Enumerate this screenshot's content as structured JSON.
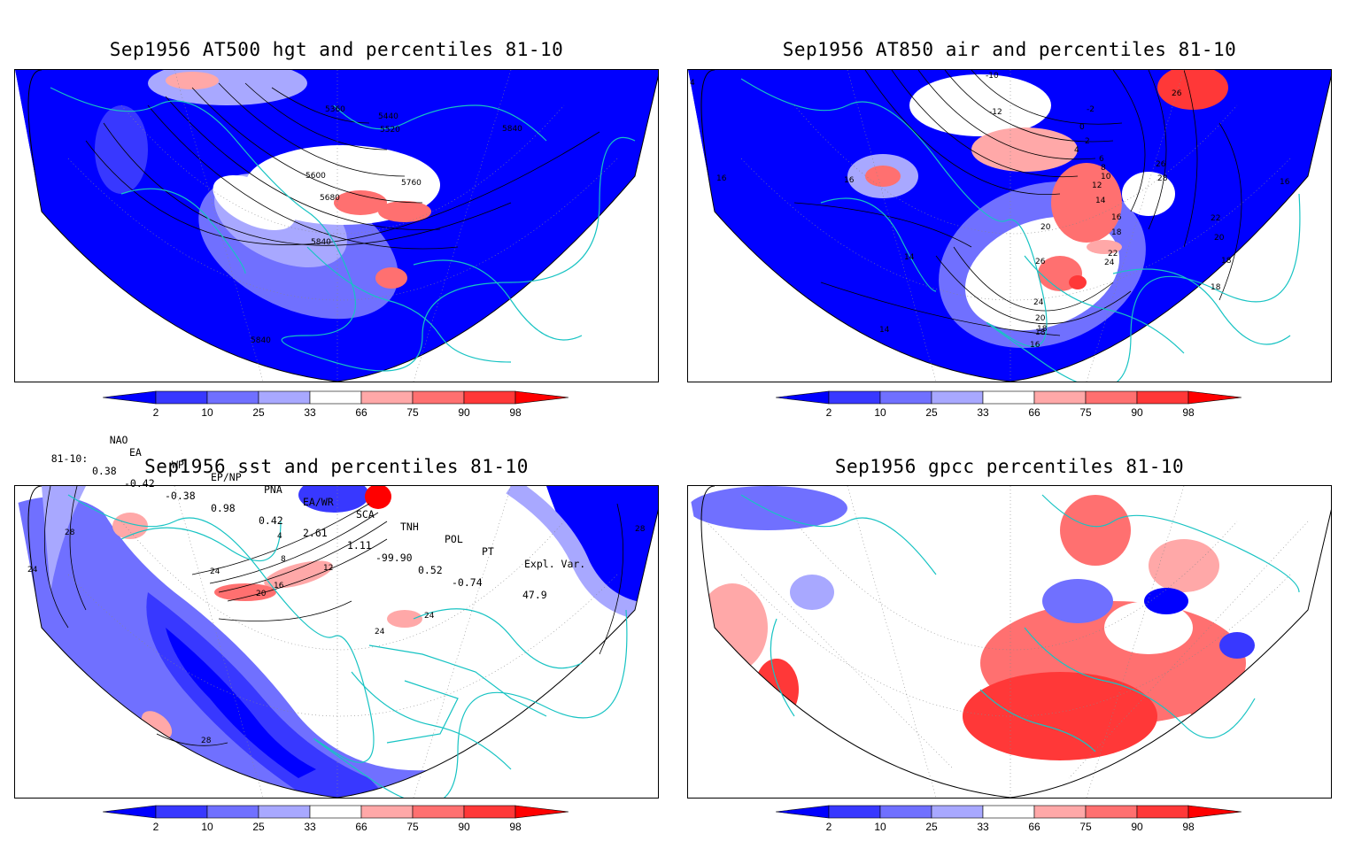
{
  "panels": [
    {
      "title": "Sep1956 AT500 hgt and percentiles 81-10",
      "contour_labels": [
        "5360",
        "5440",
        "5520",
        "5600",
        "5680",
        "5760",
        "5840",
        "5840",
        "5840",
        "5840"
      ]
    },
    {
      "title": "Sep1956 AT850 air and percentiles 81-10",
      "contour_labels": [
        "-10",
        "-12",
        "-2",
        "0",
        "2",
        "4",
        "6",
        "8",
        "10",
        "12",
        "14",
        "16",
        "16",
        "16",
        "16",
        "18",
        "18",
        "18",
        "18",
        "20",
        "20",
        "22",
        "22",
        "24",
        "24",
        "24",
        "26",
        "26",
        "26",
        "28",
        "20",
        "18",
        "4",
        "14",
        "14",
        "16"
      ]
    },
    {
      "title": "Sep1956 sst and percentiles 81-10",
      "contour_labels": [
        "28",
        "24",
        "4",
        "8",
        "12",
        "16",
        "20",
        "24",
        "24",
        "24",
        "28",
        "28"
      ]
    },
    {
      "title": "Sep1956 gpcc percentiles 81-10",
      "contour_labels": []
    }
  ],
  "colorbar": {
    "tick_labels": [
      "2",
      "10",
      "25",
      "33",
      "66",
      "75",
      "90",
      "98"
    ],
    "colors": [
      "#0000ff",
      "#3838ff",
      "#7070ff",
      "#a8a8ff",
      "#ffffff",
      "#ffa8a8",
      "#ff7070",
      "#ff3838",
      "#ff0000"
    ]
  },
  "indices": {
    "header": [
      "NAO",
      "EA",
      "WP",
      "EP/NP",
      "PNA",
      "EA/WR",
      "SCA",
      "TNH",
      "POL",
      "PT",
      "Expl. Var."
    ],
    "row_label": "81-10:",
    "values": [
      "0.38",
      "-0.42",
      "-0.38",
      "0.98",
      "0.42",
      "2.61",
      "1.11",
      "-99.90",
      "0.52",
      "-0.74",
      "47.9"
    ]
  }
}
